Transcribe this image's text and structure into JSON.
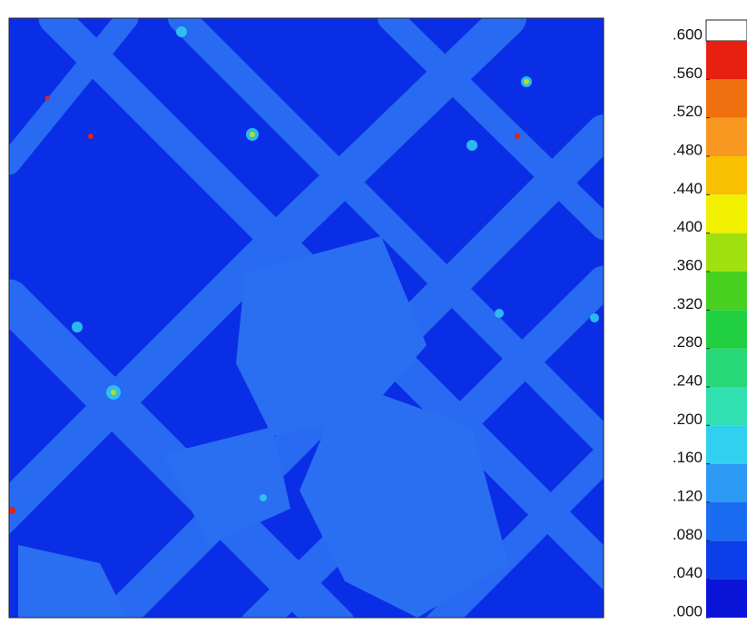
{
  "chart_data": {
    "type": "contour",
    "colorbar": {
      "ticks": [
        {
          "value": 0,
          "label": ".000"
        },
        {
          "value": 0.04,
          "label": ".040"
        },
        {
          "value": 0.08,
          "label": ".080"
        },
        {
          "value": 0.12,
          "label": ".120"
        },
        {
          "value": 0.16,
          "label": ".160"
        },
        {
          "value": 0.2,
          "label": ".200"
        },
        {
          "value": 0.24,
          "label": ".240"
        },
        {
          "value": 0.28,
          "label": ".280"
        },
        {
          "value": 0.32,
          "label": ".320"
        },
        {
          "value": 0.36,
          "label": ".360"
        },
        {
          "value": 0.4,
          "label": ".400"
        },
        {
          "value": 0.44,
          "label": ".440"
        },
        {
          "value": 0.48,
          "label": ".480"
        },
        {
          "value": 0.52,
          "label": ".520"
        },
        {
          "value": 0.56,
          "label": ".560"
        },
        {
          "value": 0.6,
          "label": ".600"
        }
      ],
      "colors": [
        "#0a14d8",
        "#0a3ee8",
        "#1a6cf0",
        "#2c9af4",
        "#30d0f0",
        "#30e0b0",
        "#28d878",
        "#20d040",
        "#48d020",
        "#a0e010",
        "#f0f000",
        "#f8c000",
        "#f89820",
        "#f07010",
        "#e82010"
      ],
      "over_color": "#ffffff"
    }
  }
}
